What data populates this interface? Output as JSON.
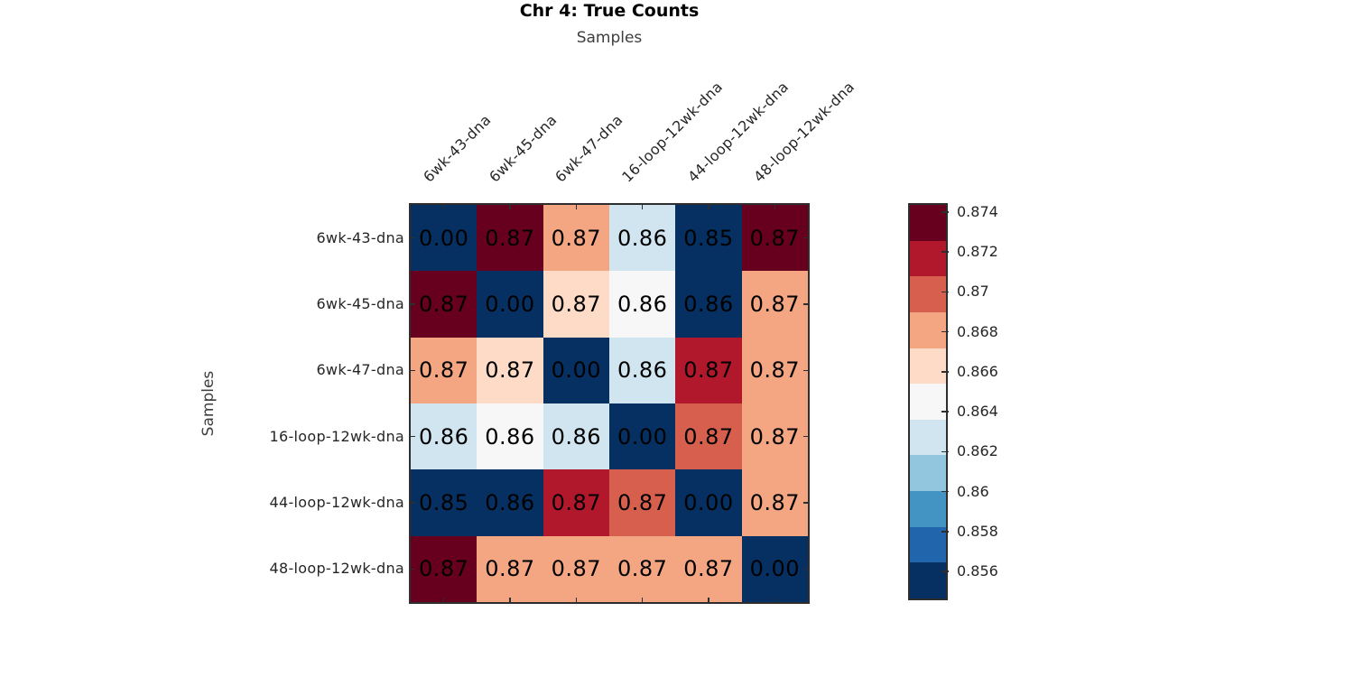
{
  "figure": {
    "title": "Chr 4: True Counts",
    "x_axis_title": "Samples",
    "y_axis_title": "Samples"
  },
  "chart_data": {
    "type": "heatmap",
    "title": "Chr 4: True Counts",
    "xlabel": "Samples",
    "ylabel": "Samples",
    "grid": false,
    "x_labels": [
      "6wk-43-dna",
      "6wk-45-dna",
      "6wk-47-dna",
      "16-loop-12wk-dna",
      "44-loop-12wk-dna",
      "48-loop-12wk-dna"
    ],
    "y_labels": [
      "6wk-43-dna",
      "6wk-45-dna",
      "6wk-47-dna",
      "16-loop-12wk-dna",
      "44-loop-12wk-dna",
      "48-loop-12wk-dna"
    ],
    "cell_text": [
      [
        "0.00",
        "0.87",
        "0.87",
        "0.86",
        "0.85",
        "0.87"
      ],
      [
        "0.87",
        "0.00",
        "0.87",
        "0.86",
        "0.86",
        "0.87"
      ],
      [
        "0.87",
        "0.87",
        "0.00",
        "0.86",
        "0.87",
        "0.87"
      ],
      [
        "0.86",
        "0.86",
        "0.86",
        "0.00",
        "0.87",
        "0.87"
      ],
      [
        "0.85",
        "0.86",
        "0.87",
        "0.87",
        "0.00",
        "0.87"
      ],
      [
        "0.87",
        "0.87",
        "0.87",
        "0.87",
        "0.87",
        "0.00"
      ]
    ],
    "cell_colors": [
      [
        "#053061",
        "#67001f",
        "#f4a582",
        "#d1e5f0",
        "#053061",
        "#67001f"
      ],
      [
        "#67001f",
        "#053061",
        "#fddbc7",
        "#f7f7f7",
        "#053061",
        "#f4a582"
      ],
      [
        "#f4a582",
        "#fddbc7",
        "#053061",
        "#d1e5f0",
        "#b2182b",
        "#f4a582"
      ],
      [
        "#d1e5f0",
        "#f7f7f7",
        "#d1e5f0",
        "#053061",
        "#d6604d",
        "#f4a582"
      ],
      [
        "#053061",
        "#053061",
        "#b2182b",
        "#d6604d",
        "#053061",
        "#f4a582"
      ],
      [
        "#67001f",
        "#f4a582",
        "#f4a582",
        "#f4a582",
        "#f4a582",
        "#053061"
      ]
    ],
    "value_text_color": "#000000",
    "colorbar": {
      "position": "right",
      "tick_labels": [
        "0.874",
        "0.872",
        "0.87",
        "0.868",
        "0.866",
        "0.864",
        "0.862",
        "0.86",
        "0.858",
        "0.856"
      ],
      "band_colors_top_to_bottom": [
        "#67001f",
        "#b2182b",
        "#d6604d",
        "#f4a582",
        "#fddbc7",
        "#f7f7f7",
        "#d1e5f0",
        "#92c5de",
        "#4393c3",
        "#2166ac",
        "#053061"
      ]
    }
  }
}
